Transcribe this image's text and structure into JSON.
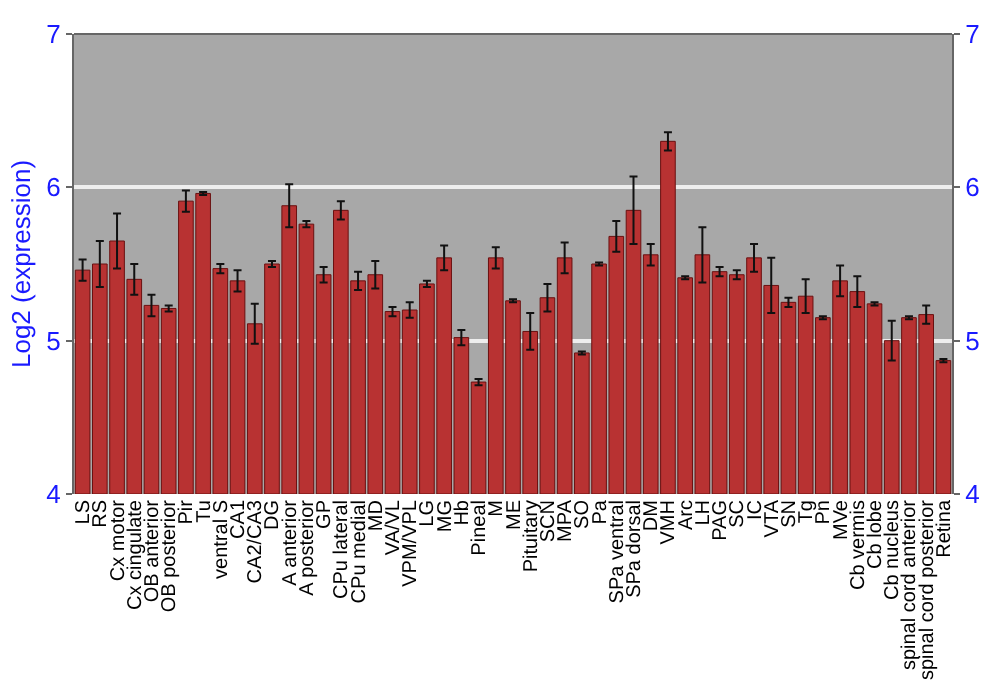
{
  "chart_data": {
    "type": "bar",
    "ylabel": "Log2 (expression)",
    "categories": [
      "LS",
      "RS",
      "Cx motor",
      "Cx cingulate",
      "OB anterior",
      "OB posterior",
      "Pir",
      "Tu",
      "ventral S",
      "CA1",
      "CA2/CA3",
      "DG",
      "A anterior",
      "A posterior",
      "GP",
      "CPu lateral",
      "CPu medial",
      "MD",
      "VA/VL",
      "VPM/VPL",
      "LG",
      "MG",
      "Hb",
      "Pineal",
      "M",
      "ME",
      "Pituitary",
      "SCN",
      "MPA",
      "SO",
      "Pa",
      "SPa ventral",
      "SPa dorsal",
      "DM",
      "VMH",
      "Arc",
      "LH",
      "PAG",
      "SC",
      "IC",
      "VTA",
      "SN",
      "Tg",
      "Pn",
      "MVe",
      "Cb vermis",
      "Cb lobe",
      "Cb nucleus",
      "spinal cord anterior",
      "spinal cord posterior",
      "Retina"
    ],
    "values": [
      5.46,
      5.5,
      5.65,
      5.4,
      5.23,
      5.21,
      5.91,
      5.96,
      5.47,
      5.39,
      5.11,
      5.5,
      5.88,
      5.76,
      5.43,
      5.85,
      5.39,
      5.43,
      5.19,
      5.2,
      5.37,
      5.54,
      5.02,
      4.73,
      5.54,
      5.26,
      5.06,
      5.28,
      5.54,
      4.92,
      5.5,
      5.68,
      5.85,
      5.56,
      6.3,
      5.41,
      5.56,
      5.45,
      5.43,
      5.54,
      5.36,
      5.25,
      5.29,
      5.15,
      5.39,
      5.32,
      5.24,
      5.0,
      5.15,
      5.17,
      4.87
    ],
    "errors": [
      0.07,
      0.15,
      0.18,
      0.1,
      0.07,
      0.02,
      0.07,
      0.01,
      0.03,
      0.07,
      0.13,
      0.02,
      0.14,
      0.02,
      0.05,
      0.06,
      0.06,
      0.09,
      0.03,
      0.05,
      0.02,
      0.08,
      0.05,
      0.02,
      0.07,
      0.01,
      0.12,
      0.09,
      0.1,
      0.01,
      0.01,
      0.1,
      0.22,
      0.07,
      0.06,
      0.01,
      0.18,
      0.03,
      0.03,
      0.09,
      0.18,
      0.03,
      0.11,
      0.01,
      0.1,
      0.1,
      0.01,
      0.13,
      0.01,
      0.06,
      0.01
    ],
    "color": "#b83232",
    "ylim": [
      4,
      7
    ],
    "yticks": [
      4,
      5,
      6,
      7
    ],
    "y2lim": [
      4,
      7
    ],
    "y2ticks": [
      4,
      5,
      6,
      7
    ],
    "grid": "y"
  }
}
